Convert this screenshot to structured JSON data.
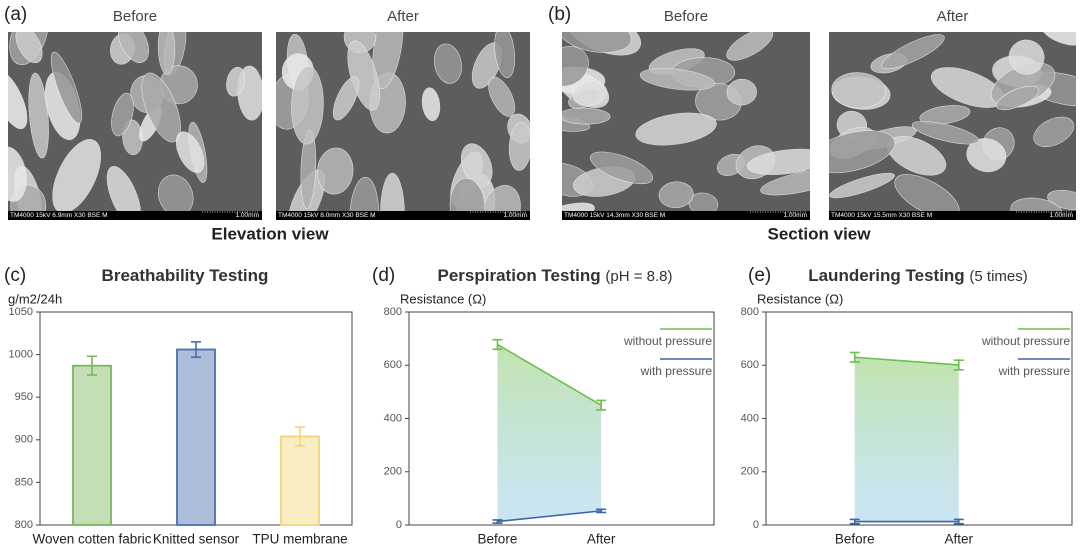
{
  "figure": {
    "panels": [
      {
        "label": "(a)",
        "caption": "Elevation view",
        "images": [
          {
            "title": "Before",
            "info": "TM4000 15kV 6.9mm X30 BSE M",
            "scale": "1.00mm"
          },
          {
            "title": "After",
            "info": "TM4000 15kV 8.0mm X30 BSE M",
            "scale": "1.00mm"
          }
        ]
      },
      {
        "label": "(b)",
        "caption": "Section view",
        "images": [
          {
            "title": "Before",
            "info": "TM4000 15kV 14.3mm X30 BSE M",
            "scale": "1.00mm"
          },
          {
            "title": "After",
            "info": "TM4000 15kV 15.5mm X30 BSE M",
            "scale": "1.00mm"
          }
        ]
      }
    ]
  },
  "chart_data": [
    {
      "type": "bar",
      "panel_label": "(c)",
      "title": "Breathability Testing",
      "ylabel": "g/m2/24h",
      "categories": [
        "Woven cotten fabric",
        "Knitted sensor",
        "TPU membrane"
      ],
      "values": [
        987,
        1006,
        904
      ],
      "errors": [
        11,
        9,
        11
      ],
      "colors": [
        "#7ab55c",
        "#4a6fae",
        "#f0d77a"
      ],
      "ylim": [
        800,
        1050
      ],
      "yticks": [
        800,
        850,
        900,
        950,
        1000,
        1050
      ]
    },
    {
      "type": "line",
      "panel_label": "(d)",
      "title": "Perspiration Testing",
      "subtitle": "(pH = 8.8)",
      "ylabel": "Resistance (Ω)",
      "categories": [
        "Before",
        "After"
      ],
      "series": [
        {
          "name": "without pressure",
          "color": "#6cbf4f",
          "values": [
            678,
            450
          ],
          "errors": [
            18,
            18
          ]
        },
        {
          "name": "with pressure",
          "color": "#3b67a8",
          "values": [
            13,
            53
          ],
          "errors": [
            6,
            6
          ]
        }
      ],
      "ylim": [
        0,
        800
      ],
      "yticks": [
        0,
        200,
        400,
        600,
        800
      ],
      "legend": "upper right"
    },
    {
      "type": "line",
      "panel_label": "(e)",
      "title": "Laundering Testing",
      "subtitle": "(5 times)",
      "ylabel": "Resistance (Ω)",
      "categories": [
        "Before",
        "After"
      ],
      "series": [
        {
          "name": "without pressure",
          "color": "#6cbf4f",
          "values": [
            630,
            601
          ],
          "errors": [
            18,
            18
          ]
        },
        {
          "name": "with pressure",
          "color": "#3b67a8",
          "values": [
            13,
            13
          ],
          "errors": [
            8,
            8
          ]
        }
      ],
      "ylim": [
        0,
        800
      ],
      "yticks": [
        0,
        200,
        400,
        600,
        800
      ],
      "legend": "upper right"
    }
  ]
}
